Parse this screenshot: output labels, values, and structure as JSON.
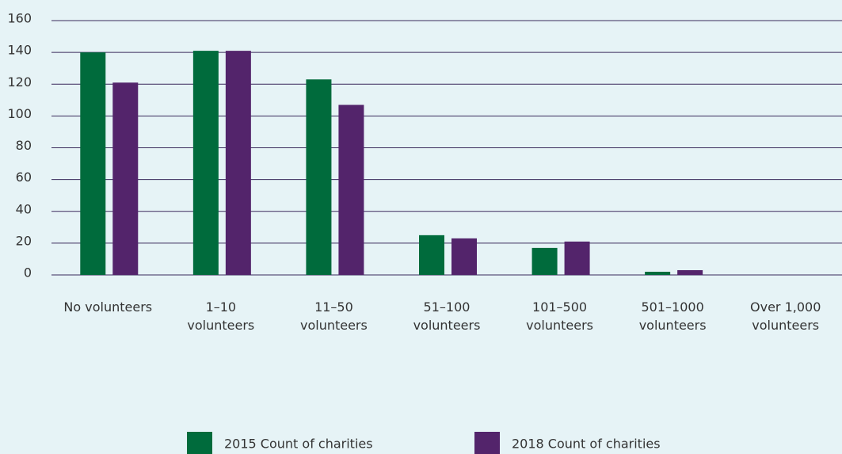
{
  "chart_data": {
    "type": "bar",
    "categories": [
      "No volunteers",
      "1–10 volunteers",
      "11–50 volunteers",
      "51–100 volunteers",
      "101–500 volunteers",
      "501–1000 volunteers",
      "Over 1,000 volunteers"
    ],
    "series": [
      {
        "name": "2015 Count of charities",
        "color": "#006b3c",
        "values": [
          140,
          141,
          123,
          25,
          17,
          2,
          0
        ]
      },
      {
        "name": "2018 Count of charities",
        "color": "#53246b",
        "values": [
          121,
          141,
          107,
          23,
          21,
          3,
          0
        ]
      }
    ],
    "ylim": [
      0,
      160
    ],
    "yticks": [
      0,
      20,
      40,
      60,
      80,
      100,
      120,
      140,
      160
    ],
    "grid": true,
    "legend": "bottom"
  }
}
